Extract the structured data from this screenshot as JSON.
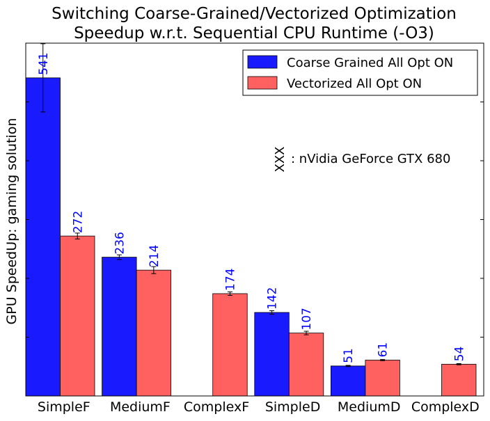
{
  "chart_data": {
    "type": "bar",
    "title": "Switching Coarse-Grained/Vectorized Optimization",
    "subtitle": "Speedup w.r.t. Sequential CPU Runtime (-O3)",
    "xlabel": "",
    "ylabel": "GPU SpeedUp: gaming solution",
    "ylim": [
      0,
      600
    ],
    "grid": false,
    "legend_position": "top-right",
    "categories": [
      "SimpleF",
      "MediumF",
      "ComplexF",
      "SimpleD",
      "MediumD",
      "ComplexD"
    ],
    "series": [
      {
        "name": "Coarse Grained All Opt ON",
        "color": "#1a1aff",
        "values": [
          541,
          236,
          null,
          142,
          51,
          null
        ],
        "errors": [
          58,
          4,
          null,
          3,
          1,
          null
        ],
        "labels": [
          "541",
          "236",
          "",
          "142",
          "51",
          ""
        ]
      },
      {
        "name": "Vectorized All Opt ON",
        "color": "#ff6161",
        "values": [
          272,
          214,
          174,
          107,
          61,
          54
        ],
        "errors": [
          5,
          6,
          3,
          3,
          1,
          1
        ],
        "labels": [
          "272",
          "214",
          "174",
          "107",
          "61",
          "54"
        ]
      }
    ],
    "annotation": {
      "marker": "XXX",
      "text": ": nVidia GeForce GTX 680"
    }
  }
}
